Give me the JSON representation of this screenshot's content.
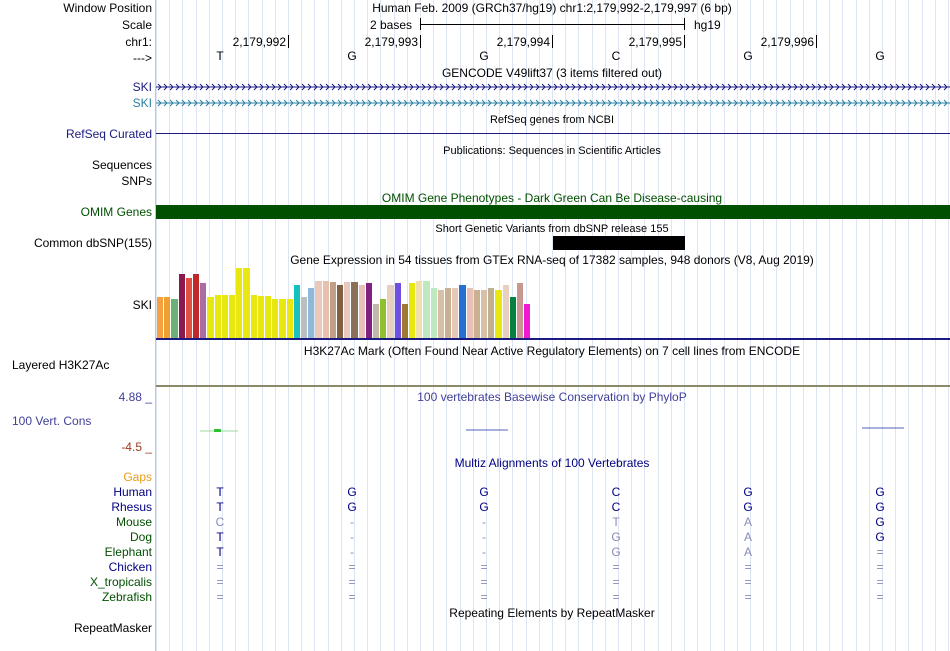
{
  "labels": {
    "window_position": "Window Position",
    "scale": "Scale",
    "chr": "chr1:",
    "strand": "--->",
    "ski1": "SKI",
    "ski2": "SKI",
    "refseq": "RefSeq Curated",
    "sequences": "Sequences",
    "snps": "SNPs",
    "omim": "OMIM Genes",
    "dbsnp": "Common dbSNP(155)",
    "gtex_ski": "SKI",
    "h3k27ac": "Layered H3K27Ac",
    "phylop_max": "4.88 _",
    "cons": "100 Vert. Cons",
    "phylop_min": "-4.5 _",
    "gaps": "Gaps",
    "species": [
      "Human",
      "Rhesus",
      "Mouse",
      "Dog",
      "Elephant",
      "Chicken",
      "X_tropicalis",
      "Zebrafish"
    ],
    "repeatmasker": "RepeatMasker"
  },
  "header": {
    "position": "Human Feb. 2009 (GRCh37/hg19)   chr1:2,179,992-2,179,997 (6 bp)",
    "scale_text": "2 bases",
    "assembly": "hg19",
    "coords": [
      "2,179,992",
      "2,179,993",
      "2,179,994",
      "2,179,995",
      "2,179,996"
    ],
    "bases": [
      "T",
      "G",
      "G",
      "C",
      "G",
      "G"
    ]
  },
  "titles": {
    "gencode": "GENCODE V49lift37 (3 items filtered out)",
    "refseq": "RefSeq genes from NCBI",
    "publications": "Publications: Sequences in Scientific Articles",
    "omim": "OMIM Gene Phenotypes - Dark Green Can Be Disease-causing",
    "dbsnp": "Short Genetic Variants from dbSNP release 155",
    "gtex": "Gene Expression in 54 tissues from GTEx RNA-seq of 17382 samples, 948 donors (V8, Aug 2019)",
    "h3k27ac": "H3K27Ac Mark (Often Found Near Active Regulatory Elements) on 7 cell lines from ENCODE",
    "phylop": "100 vertebrates Basewise Conservation by PhyloP",
    "multiz": "Multiz Alignments of 100 Vertebrates",
    "repeatmasker": "Repeating Elements by RepeatMasker"
  },
  "alignment": [
    [
      "T",
      "G",
      "G",
      "C",
      "G",
      "G"
    ],
    [
      "T",
      "G",
      "G",
      "C",
      "G",
      "G"
    ],
    [
      "C",
      "-",
      "-",
      "T",
      "A",
      "G"
    ],
    [
      "T",
      "-",
      "-",
      "G",
      "A",
      "G"
    ],
    [
      "T",
      "-",
      "-",
      "G",
      "A",
      "="
    ],
    [
      "=",
      "=",
      "=",
      "=",
      "=",
      "="
    ],
    [
      "=",
      "=",
      "=",
      "=",
      "=",
      "="
    ],
    [
      "=",
      "=",
      "=",
      "=",
      "=",
      "="
    ]
  ],
  "gtex_levels": [
    0.58,
    0.58,
    0.55,
    0.92,
    0.85,
    0.92,
    0.78,
    0.58,
    0.62,
    0.62,
    0.62,
    1.0,
    1.0,
    0.62,
    0.6,
    0.6,
    0.56,
    0.56,
    0.56,
    0.75,
    0.58,
    0.72,
    0.82,
    0.82,
    0.8,
    0.75,
    0.8,
    0.8,
    0.75,
    0.78,
    0.48,
    0.56,
    0.75,
    0.78,
    0.48,
    0.78,
    0.82,
    0.82,
    0.72,
    0.68,
    0.72,
    0.72,
    0.75,
    0.72,
    0.68,
    0.68,
    0.72,
    0.68,
    0.75,
    0.58,
    0.78,
    0.48
  ],
  "colors": {
    "omim": "#005000",
    "ski1": "#1a1a80",
    "ski2": "#2a7fa0",
    "refseq": "#1a1a80",
    "phylop_label": "#40409a",
    "cons_label": "#40409a",
    "phylop_min": "#9a3a1a",
    "gaps": "#e89c1a",
    "species_dark": "#000080",
    "species_green": "#005000",
    "align_strong": "#000080",
    "align_weak": "#8a8ab8",
    "gtex": [
      "#f8a040",
      "#f0a030",
      "#6eb07a",
      "#8a1a4e",
      "#e05040",
      "#c0282a",
      "#a86ea0",
      "#e8e810",
      "#e8e810",
      "#e8e810",
      "#e8e810",
      "#e8e810",
      "#e8e810",
      "#e8e810",
      "#e8e810",
      "#e8e810",
      "#e8e810",
      "#e8e810",
      "#e8e810",
      "#18c0c0",
      "#b8c0c0",
      "#90b8d8",
      "#ecc8b8",
      "#e8c0b0",
      "#c0a088",
      "#806040",
      "#e8c8c0",
      "#8a7058",
      "#e8c0b8",
      "#802080",
      "#c0b8a8",
      "#90c030",
      "#e8d0c0",
      "#7050e0",
      "#a07830",
      "#e8e810",
      "#f0e0b0",
      "#c0e8c0",
      "#c0e8c0",
      "#d8c0a8",
      "#c8b090",
      "#e8c8b8",
      "#2870d0",
      "#e8c0b8",
      "#c8b090",
      "#d8c0a8",
      "#c0b090",
      "#e8e810",
      "#e8d0c0",
      "#088040",
      "#c89890",
      "#f018d0"
    ]
  }
}
